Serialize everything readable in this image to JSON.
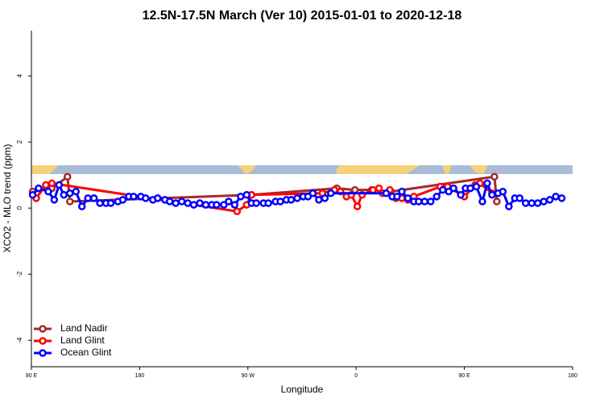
{
  "chart_data": {
    "type": "line",
    "title": "12.5N-17.5N March (Ver 10)   2015-01-01 to 2020-12-18",
    "x_label": "Longitude",
    "y_label": "XCO2 - MLO trend (ppm)",
    "xlim": [
      90,
      540
    ],
    "xticks": [
      {
        "value": 90,
        "label": "90 E"
      },
      180,
      {
        "value": 270,
        "label": "90 W"
      },
      {
        "value": 360,
        "label": "0"
      },
      {
        "value": 450,
        "label": "90 E"
      },
      {
        "value": 540,
        "label": "180"
      }
    ],
    "ylim": [
      -4.8,
      5.37
    ],
    "yticks": [
      -4,
      -2,
      0,
      2,
      4
    ],
    "legend": "bottom-left",
    "series": [
      {
        "name": "Land Nadir",
        "color": "#a52a2a",
        "x": [
          91,
          107,
          120,
          122,
          273,
          344,
          359,
          373,
          389,
          475,
          477
        ],
        "values": [
          0.5,
          0.6,
          0.95,
          0.2,
          0.4,
          0.6,
          0.55,
          0.55,
          0.5,
          0.95,
          0.2
        ]
      },
      {
        "name": "Land Glint",
        "color": "#ff0000",
        "x": [
          94,
          102,
          107,
          261,
          269,
          273,
          332,
          342,
          347,
          352,
          356,
          361,
          365,
          374,
          379,
          382,
          388,
          393,
          398,
          403,
          408,
          430,
          436,
          450,
          459,
          463,
          473
        ],
        "values": [
          0.3,
          0.7,
          0.75,
          -0.1,
          0.1,
          0.4,
          0.45,
          0.55,
          0.5,
          0.35,
          0.4,
          0.05,
          0.4,
          0.55,
          0.6,
          0.45,
          0.55,
          0.3,
          0.3,
          0.25,
          0.35,
          0.65,
          0.65,
          0.35,
          0.7,
          0.75,
          0.45
        ]
      },
      {
        "name": "Ocean Glint",
        "color": "#0000ff",
        "x": [
          91,
          96,
          104,
          109,
          113,
          117,
          122,
          127,
          132,
          137,
          142,
          147,
          152,
          156,
          162,
          166,
          171,
          175,
          181,
          185,
          191,
          195,
          201,
          205,
          210,
          215,
          220,
          225,
          230,
          235,
          240,
          244,
          250,
          254,
          259,
          264,
          269,
          273,
          277,
          283,
          287,
          293,
          297,
          302,
          306,
          311,
          316,
          320,
          324,
          329,
          334,
          339,
          385,
          390,
          394,
          398,
          403,
          408,
          412,
          417,
          422,
          427,
          432,
          437,
          441,
          447,
          451,
          455,
          460,
          465,
          469,
          473,
          478,
          482,
          487,
          492,
          496,
          501,
          506,
          511,
          516,
          521,
          526,
          531
        ],
        "values": [
          0.4,
          0.6,
          0.5,
          0.25,
          0.7,
          0.4,
          0.45,
          0.5,
          0.05,
          0.3,
          0.3,
          0.15,
          0.15,
          0.15,
          0.2,
          0.25,
          0.35,
          0.35,
          0.35,
          0.3,
          0.25,
          0.3,
          0.25,
          0.2,
          0.15,
          0.2,
          0.15,
          0.1,
          0.15,
          0.1,
          0.1,
          0.1,
          0.1,
          0.2,
          0.1,
          0.35,
          0.4,
          0.15,
          0.15,
          0.15,
          0.15,
          0.2,
          0.2,
          0.25,
          0.25,
          0.3,
          0.35,
          0.35,
          0.45,
          0.25,
          0.3,
          0.45,
          0.45,
          0.35,
          0.35,
          0.5,
          0.3,
          0.2,
          0.2,
          0.2,
          0.2,
          0.35,
          0.55,
          0.5,
          0.6,
          0.4,
          0.6,
          0.6,
          0.65,
          0.2,
          0.75,
          0.4,
          0.45,
          0.5,
          0.05,
          0.3,
          0.3,
          0.15,
          0.15,
          0.15,
          0.2,
          0.25,
          0.35,
          0.3
        ]
      }
    ]
  }
}
